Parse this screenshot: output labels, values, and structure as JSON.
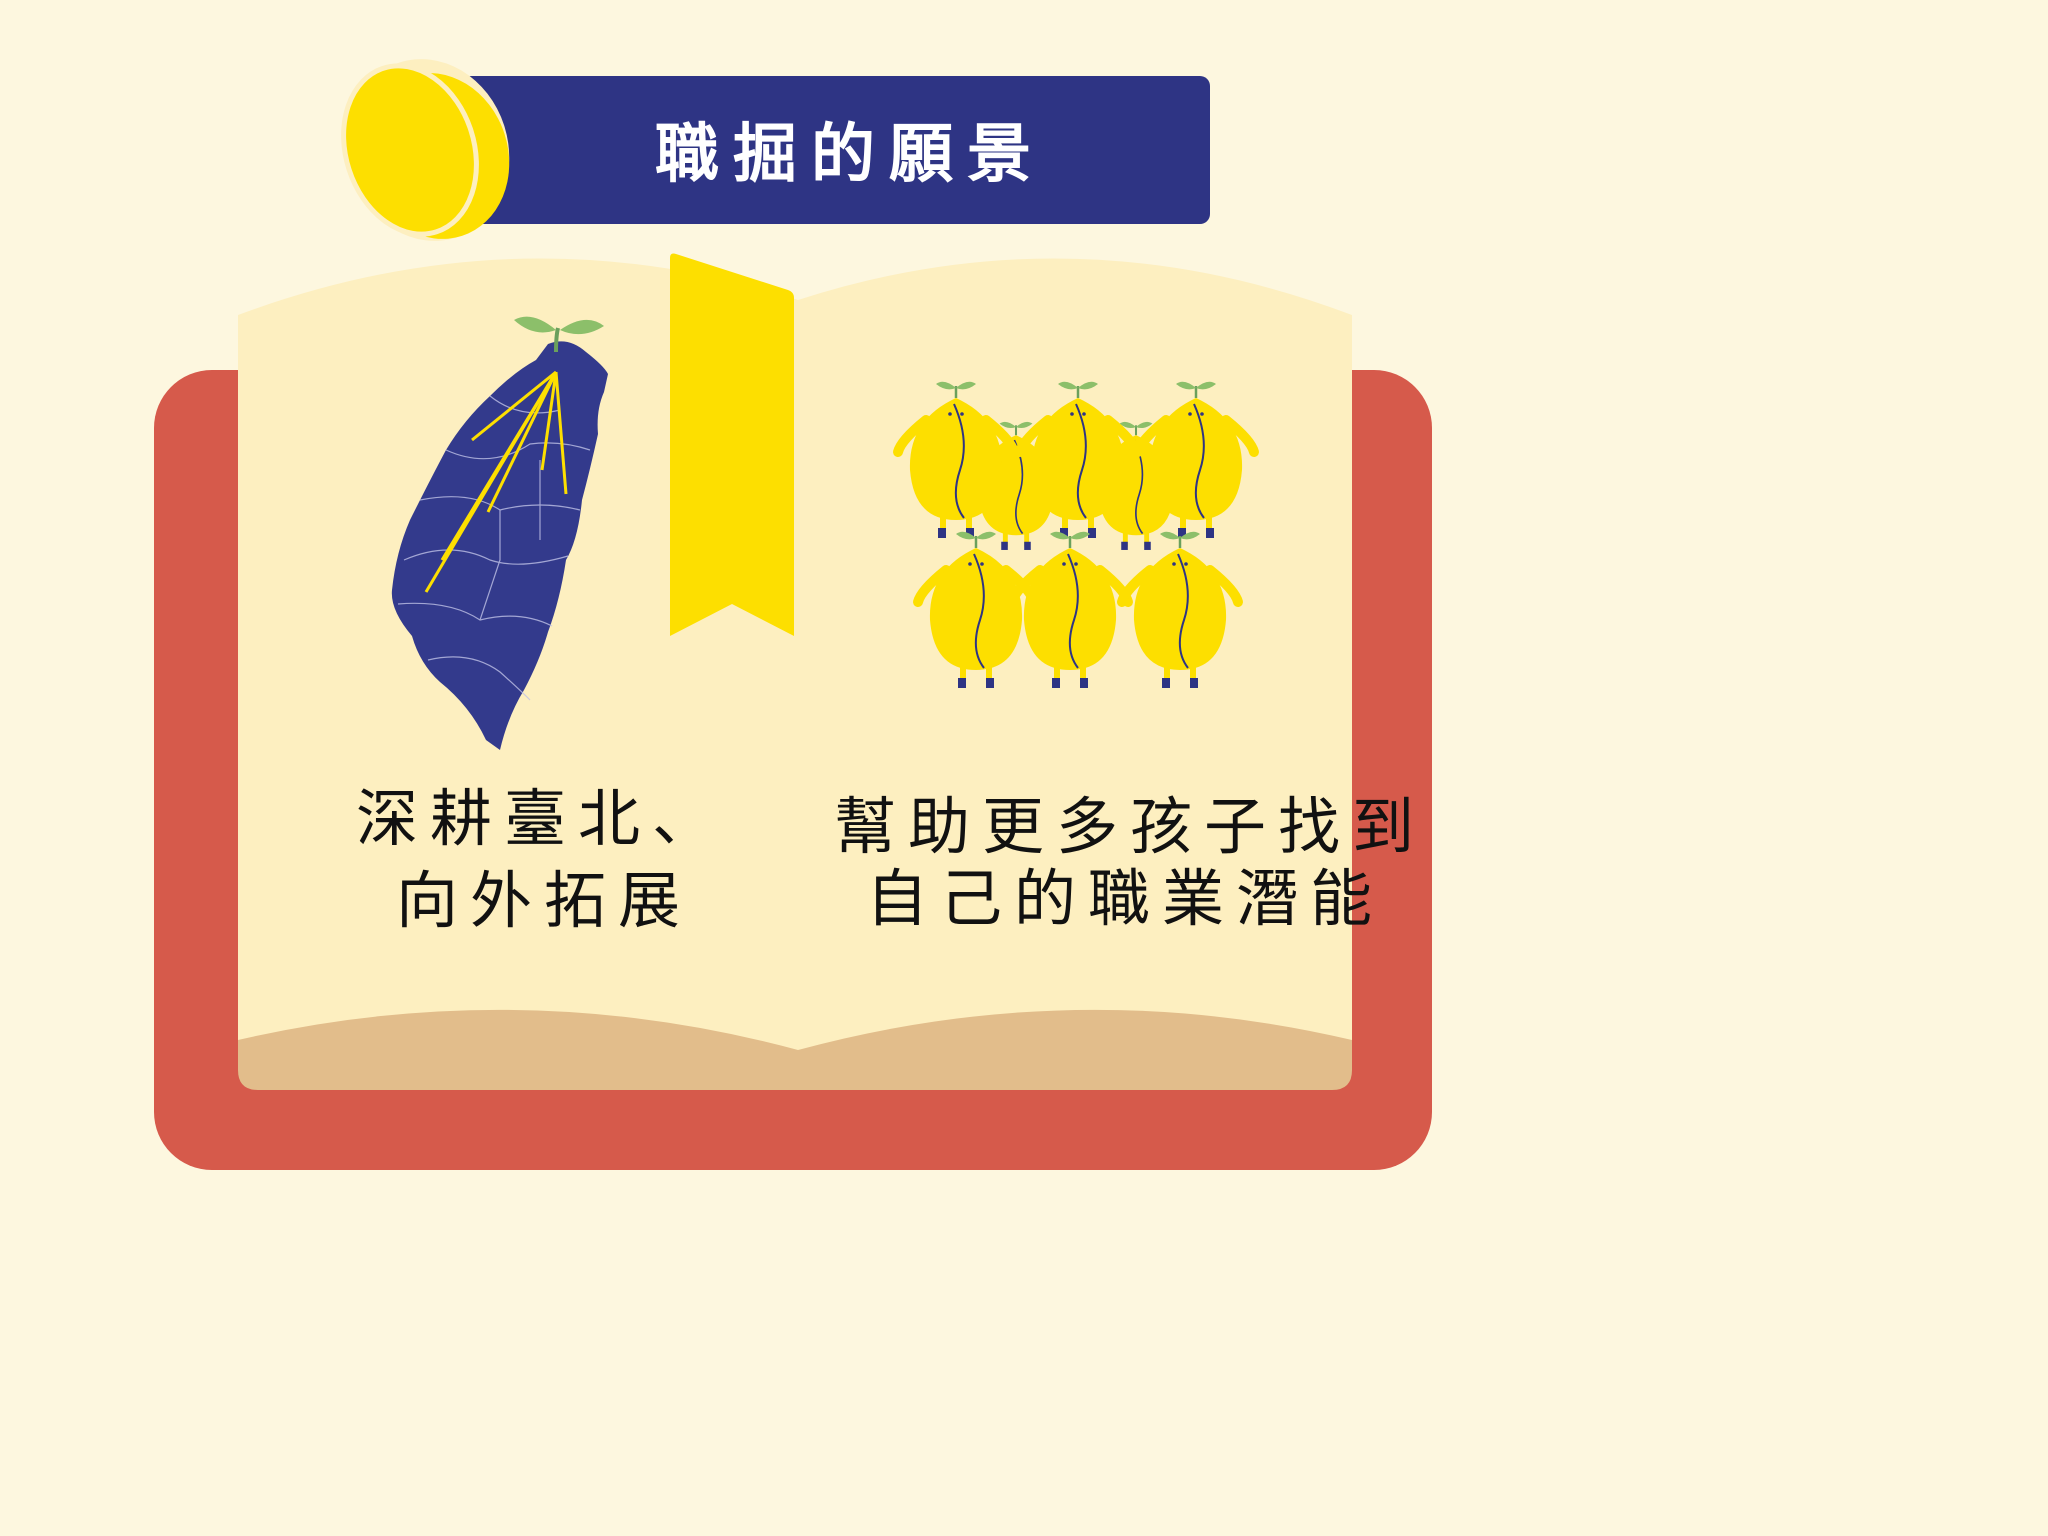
{
  "title": "職掘的願景",
  "left_caption": {
    "line1": "深耕臺北、",
    "line2": "向外拓展"
  },
  "right_caption": {
    "line1": "幫助更多孩子找到",
    "line2": "自己的職業潛能"
  },
  "colors": {
    "background": "#fdf7df",
    "book_cover": "#d65a4b",
    "page": "#fdefc0",
    "page_edge": "#e2bd8b",
    "banner": "#2e3484",
    "yellow": "#fddf00",
    "map": "#333a8c",
    "text": "#111111"
  },
  "icons": [
    "bean-icon",
    "taiwan-map-icon",
    "sprout-icon",
    "bookmark-icon",
    "bean-character-icon"
  ]
}
